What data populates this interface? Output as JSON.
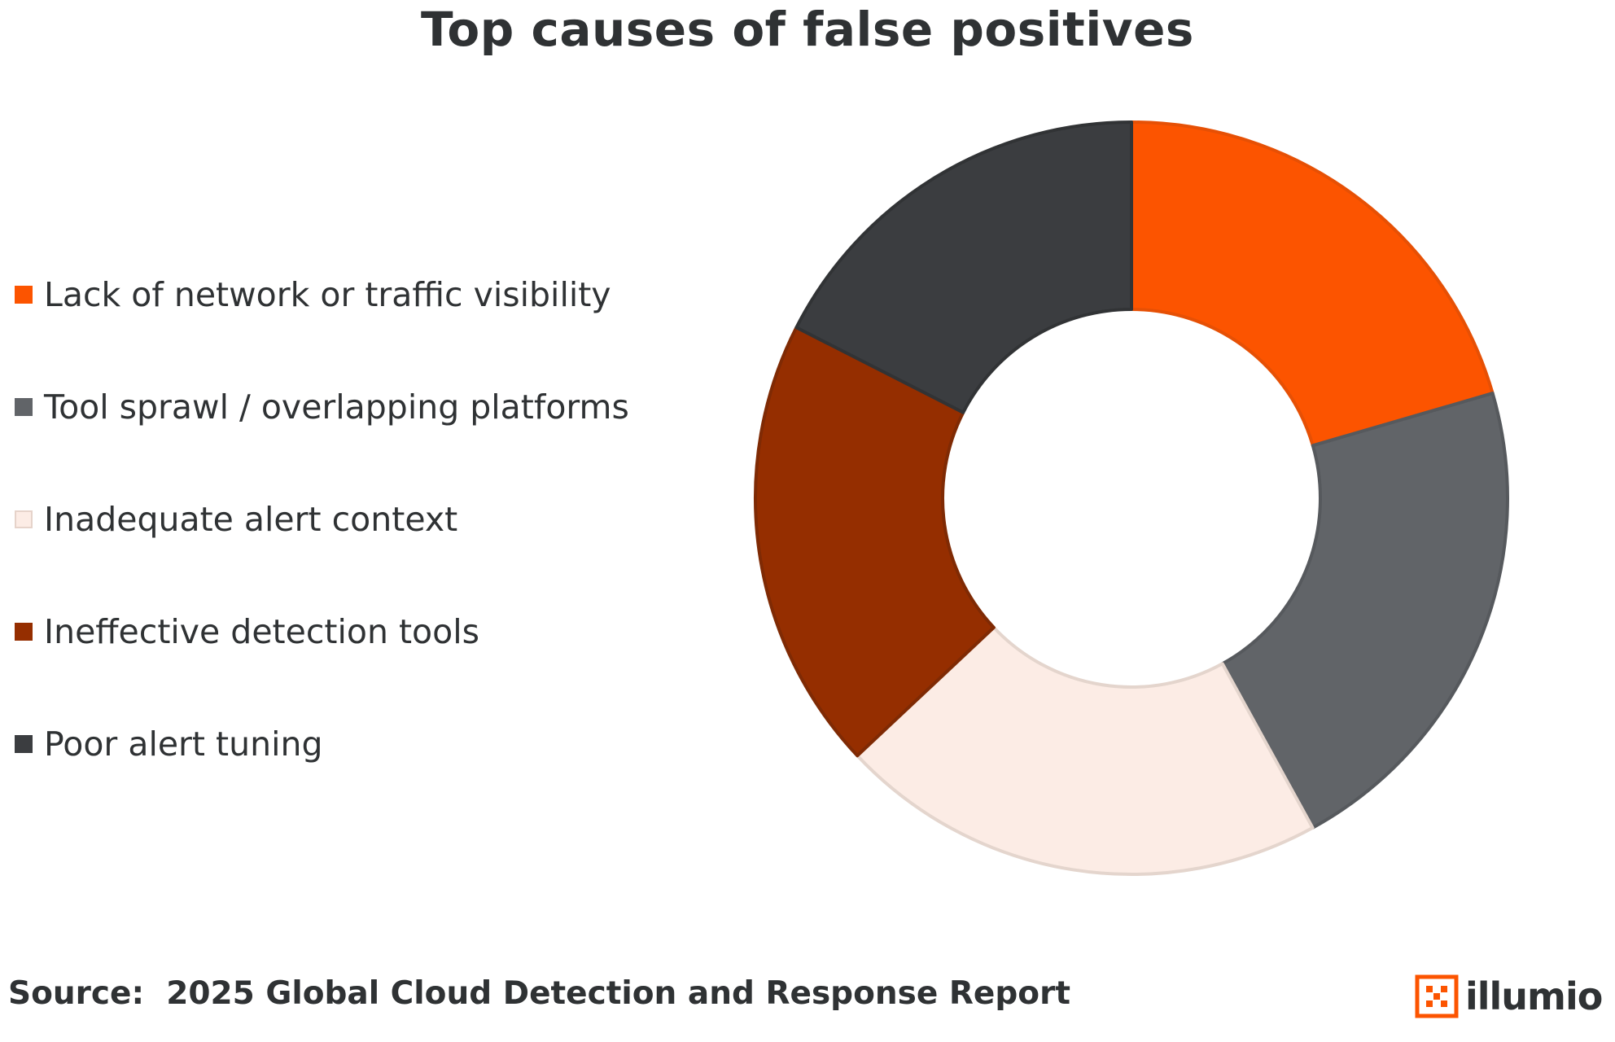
{
  "chart_data": {
    "type": "pie",
    "variant": "donut",
    "title": "Top causes of false positives",
    "categories": [
      "Lack of network or traffic visibility",
      "Tool sprawl / overlapping platforms",
      "Inadequate alert context",
      "Ineffective detection tools",
      "Poor alert tuning"
    ],
    "values": [
      20.5,
      21.5,
      21,
      19.5,
      17.5
    ],
    "colors": [
      "#fc5400",
      "#616468",
      "#fcece5",
      "#952e00",
      "#3b3d40"
    ],
    "legend_position": "left"
  },
  "footer": {
    "source": "Source:  2025 Global Cloud Detection and Response Report"
  },
  "logo": {
    "text": "illumio",
    "icon": "illumio-logo-icon",
    "color": "#fc5400"
  }
}
